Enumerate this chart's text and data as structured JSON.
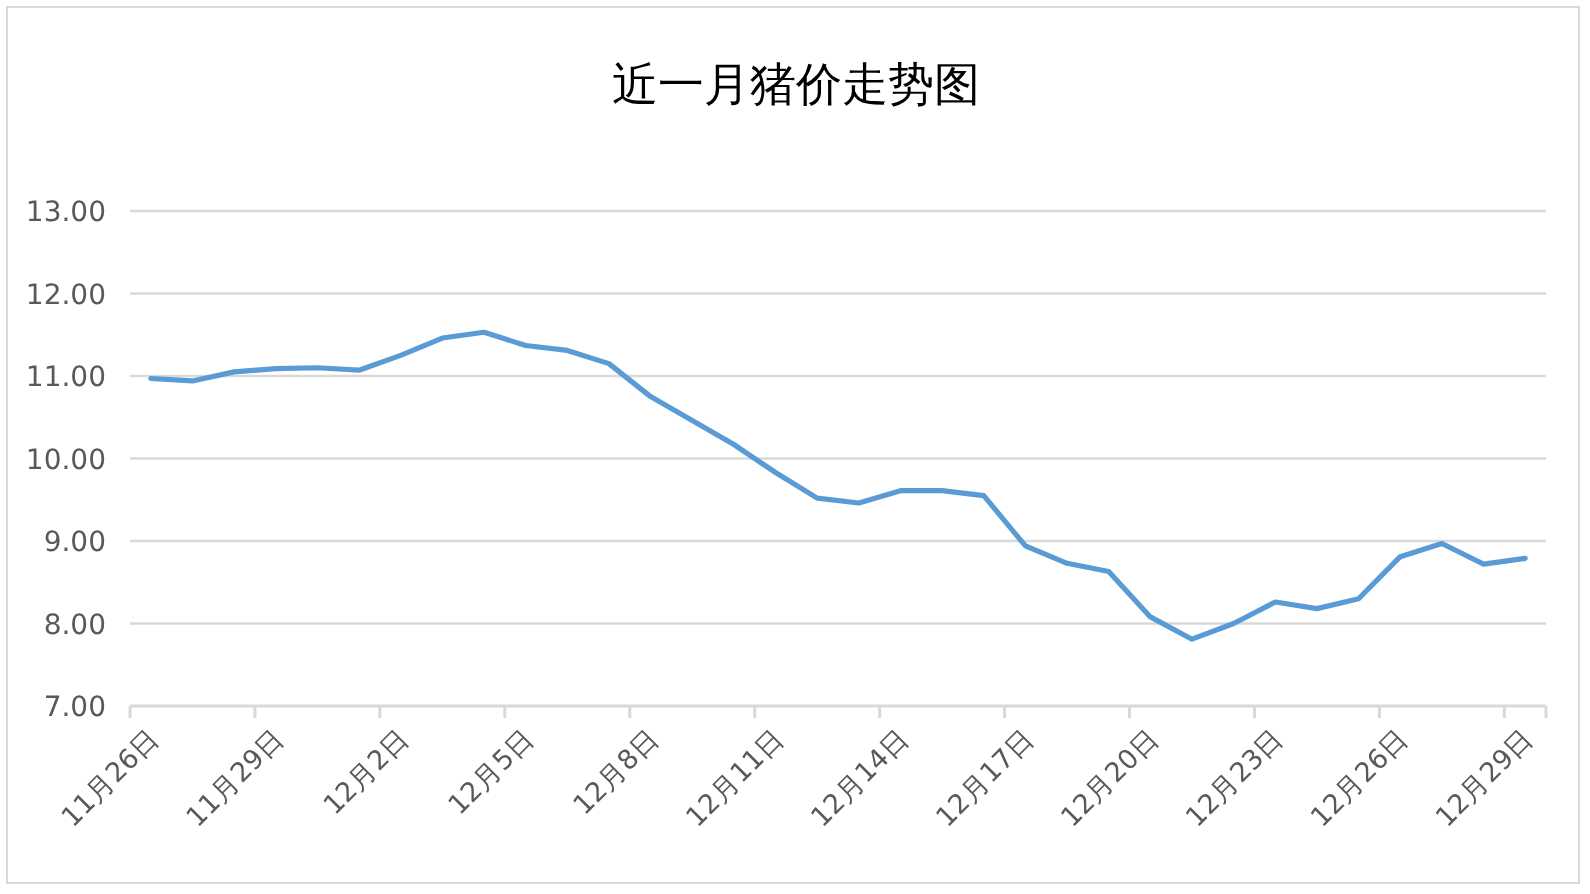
{
  "chart_data": {
    "type": "line",
    "title": "近一月猪价走势图",
    "categories": [
      "11月26日",
      null,
      null,
      "11月29日",
      null,
      null,
      "12月2日",
      null,
      null,
      "12月5日",
      null,
      null,
      "12月8日",
      null,
      null,
      "12月11日",
      null,
      null,
      "12月14日",
      null,
      null,
      "12月17日",
      null,
      null,
      "12月20日",
      null,
      null,
      "12月23日",
      null,
      null,
      "12月26日",
      null,
      null,
      "12月29日"
    ],
    "values": [
      10.97,
      10.94,
      11.05,
      11.09,
      11.1,
      11.07,
      11.25,
      11.46,
      11.53,
      11.37,
      11.31,
      11.15,
      10.75,
      10.46,
      10.17,
      9.83,
      9.52,
      9.46,
      9.61,
      9.61,
      9.55,
      8.94,
      8.73,
      8.63,
      8.08,
      7.81,
      8.0,
      8.26,
      8.18,
      8.3,
      8.81,
      8.97,
      8.72,
      8.79
    ],
    "color": "#5b9bd5",
    "line_style": "solid",
    "ylim": [
      7,
      13
    ],
    "yticks": [
      {
        "value": 7,
        "label": "7.00"
      },
      {
        "value": 8,
        "label": "8.00"
      },
      {
        "value": 9,
        "label": "9.00"
      },
      {
        "value": 10,
        "label": "10.00"
      },
      {
        "value": 11,
        "label": "11.00"
      },
      {
        "value": 12,
        "label": "12.00"
      },
      {
        "value": 13,
        "label": "13.00"
      }
    ],
    "grid": "y"
  }
}
